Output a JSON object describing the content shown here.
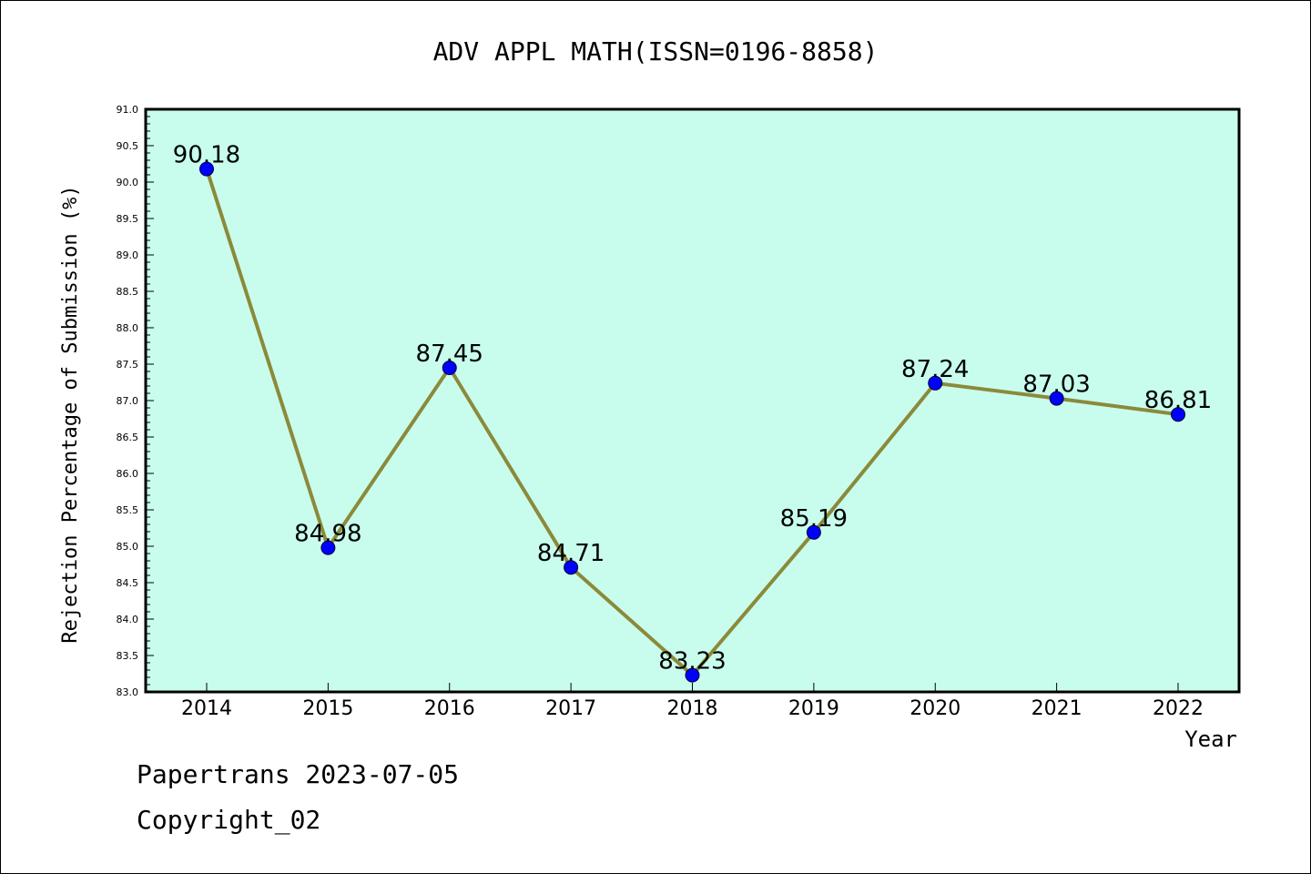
{
  "chart_data": {
    "type": "line",
    "title": "ADV APPL MATH(ISSN=0196-8858)",
    "xlabel": "Year",
    "ylabel": "Rejection Percentage of Submission (%)",
    "categories": [
      "2014",
      "2015",
      "2016",
      "2017",
      "2018",
      "2019",
      "2020",
      "2021",
      "2022"
    ],
    "series": [
      {
        "values": [
          90.18,
          84.98,
          87.45,
          84.71,
          83.23,
          85.19,
          87.24,
          87.03,
          86.81
        ]
      }
    ],
    "data_labels": [
      "90.18",
      "84.98",
      "87.45",
      "84.71",
      "83.23",
      "85.19",
      "87.24",
      "87.03",
      "86.81"
    ],
    "ylim": [
      83.0,
      91.0
    ],
    "y_ticks": [
      "83.0",
      "83.5",
      "84.0",
      "84.5",
      "85.0",
      "85.5",
      "86.0",
      "86.5",
      "87.0",
      "87.5",
      "88.0",
      "88.5",
      "89.0",
      "89.5",
      "90.0",
      "90.5",
      "91.0"
    ],
    "grid": false,
    "legend": "none",
    "colors": {
      "plot_background": "#c8fdee",
      "line": "#8b8a3a",
      "marker": "#0000ff"
    }
  },
  "footer": {
    "date_line": "Papertrans 2023-07-05",
    "copyright_line": "Copyright_02"
  }
}
